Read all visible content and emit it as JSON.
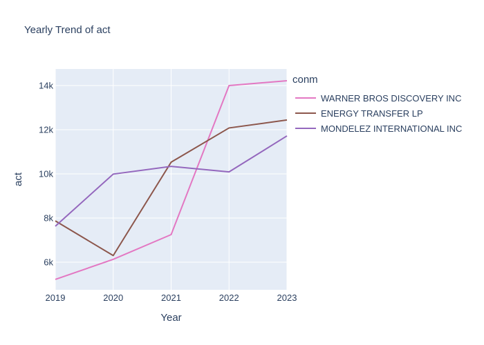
{
  "chart_data": {
    "type": "line",
    "title": "Yearly Trend of act",
    "xlabel": "Year",
    "ylabel": "act",
    "x": [
      2019,
      2020,
      2021,
      2022,
      2023
    ],
    "xlim": [
      2019,
      2023
    ],
    "ylim": [
      4750,
      14750
    ],
    "yticks": [
      6000,
      8000,
      10000,
      12000,
      14000
    ],
    "ytick_labels": [
      "6k",
      "8k",
      "10k",
      "12k",
      "14k"
    ],
    "grid": true,
    "legend_title": "conm",
    "legend_position": "right",
    "series": [
      {
        "name": "WARNER BROS DISCOVERY INC",
        "color": "#e377c2",
        "values": [
          5220,
          6130,
          7250,
          14000,
          14220
        ]
      },
      {
        "name": "ENERGY TRANSFER LP",
        "color": "#8c564b",
        "values": [
          7870,
          6300,
          10530,
          12080,
          12440
        ]
      },
      {
        "name": "MONDELEZ INTERNATIONAL INC",
        "color": "#9467bd",
        "values": [
          7630,
          9990,
          10340,
          10090,
          11720
        ]
      }
    ]
  }
}
